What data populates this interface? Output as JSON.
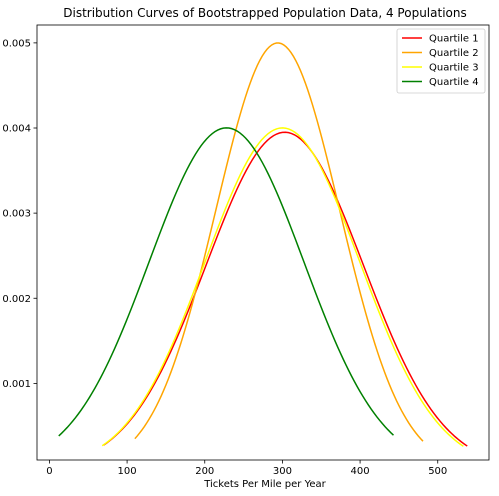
{
  "chart_data": {
    "type": "line",
    "title": "Distribution Curves of Bootstrapped Population Data, 4 Populations",
    "xlabel": "Tickets Per Mile per Year",
    "ylabel": "",
    "xlim": [
      -16,
      566
    ],
    "ylim": [
      0.0001,
      0.00521
    ],
    "xticks": [
      0,
      100,
      200,
      300,
      400,
      500
    ],
    "yticks": [
      0.001,
      0.002,
      0.003,
      0.004,
      0.005
    ],
    "ytick_labels": [
      "0.001",
      "0.002",
      "0.003",
      "0.004",
      "0.005"
    ],
    "grid": false,
    "legend_position": "top-right",
    "series": [
      {
        "name": "Quartile 1",
        "color": "#ff0000",
        "mean": 303,
        "std": 101,
        "x_range": [
          70,
          538
        ]
      },
      {
        "name": "Quartile 2",
        "color": "#ffa500",
        "mean": 294,
        "std": 79.8,
        "x_range": [
          110,
          481
        ]
      },
      {
        "name": "Quartile 3",
        "color": "#ffff00",
        "mean": 300,
        "std": 99.7,
        "x_range": [
          68,
          533
        ]
      },
      {
        "name": "Quartile 4",
        "color": "#008000",
        "mean": 228,
        "std": 99.7,
        "x_range": [
          12,
          443
        ]
      }
    ]
  }
}
